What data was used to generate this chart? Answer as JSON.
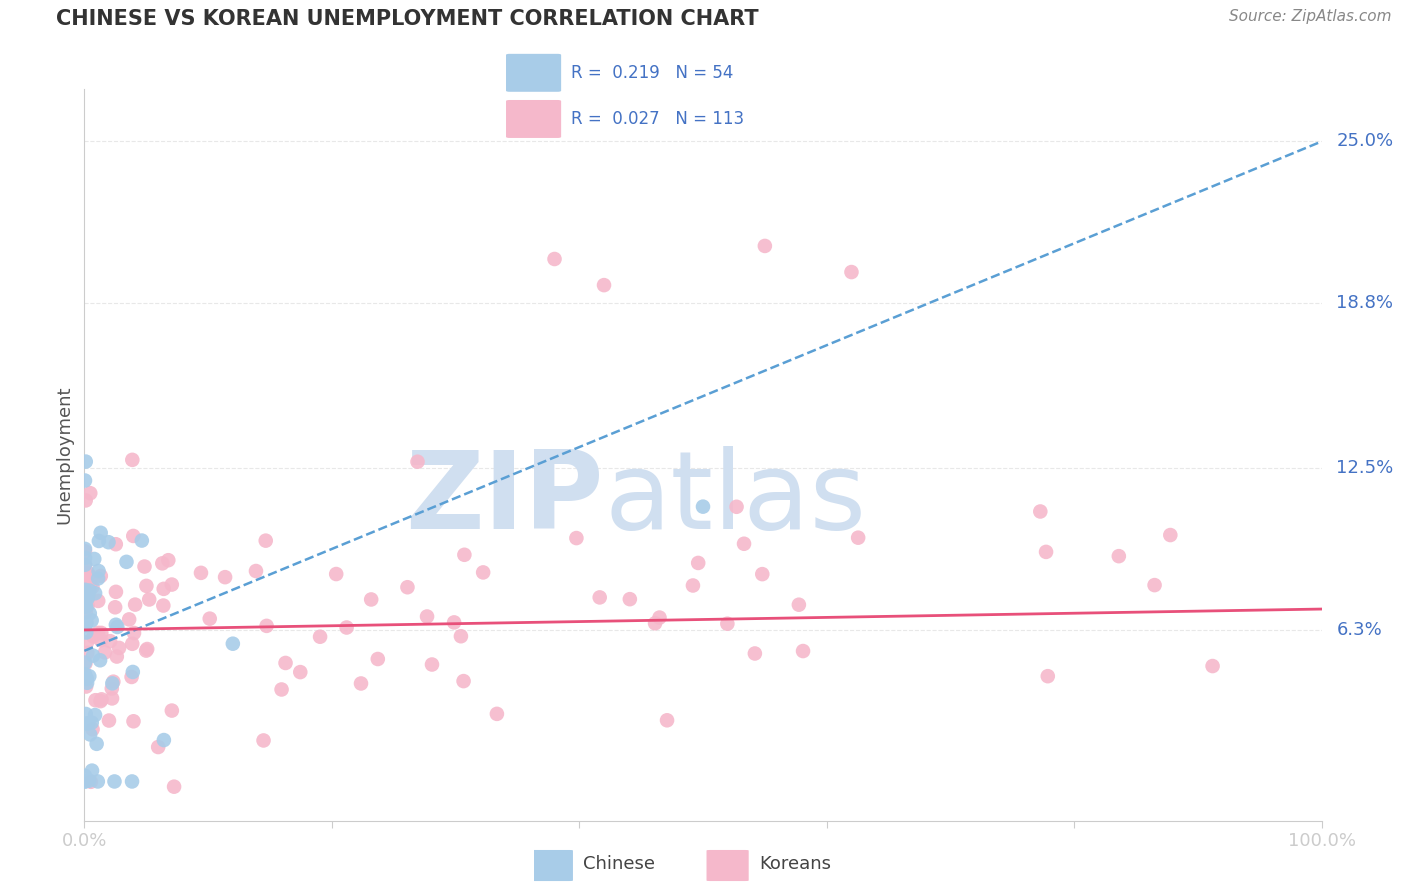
{
  "title": "CHINESE VS KOREAN UNEMPLOYMENT CORRELATION CHART",
  "source_text": "Source: ZipAtlas.com",
  "ylabel": "Unemployment",
  "xlim": [
    0,
    100
  ],
  "ylim": [
    -1,
    27
  ],
  "ytick_vals": [
    6.3,
    12.5,
    18.8,
    25.0
  ],
  "ytick_labels": [
    "6.3%",
    "12.5%",
    "18.8%",
    "25.0%"
  ],
  "xtick_vals": [
    0,
    20,
    40,
    60,
    80,
    100
  ],
  "xtick_labels": [
    "0.0%",
    "",
    "",
    "",
    "",
    "100.0%"
  ],
  "legend_R_chinese": "R =  0.219",
  "legend_N_chinese": "N = 54",
  "legend_R_korean": "R =  0.027",
  "legend_N_korean": "N = 113",
  "chinese_scatter_color": "#a8cce8",
  "korean_scatter_color": "#f5b8cb",
  "chinese_line_color": "#5a9fd4",
  "korean_line_color": "#e8507a",
  "legend_color": "#4472c4",
  "title_color": "#333333",
  "source_color": "#888888",
  "ylabel_color": "#555555",
  "tick_label_color": "#4472c4",
  "grid_color": "#e8e8e8",
  "spine_color": "#cccccc",
  "watermark_zip": "ZIP",
  "watermark_atlas": "atlas",
  "watermark_color": "#d0dff0",
  "background_color": "#ffffff",
  "chinese_trend_x": [
    0,
    100
  ],
  "chinese_trend_y": [
    5.5,
    25.0
  ],
  "korean_trend_x": [
    0,
    100
  ],
  "korean_trend_y": [
    6.3,
    7.1
  ]
}
